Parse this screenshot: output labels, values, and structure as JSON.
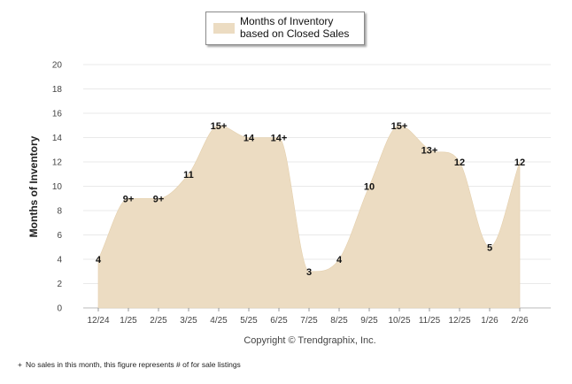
{
  "chart_data": {
    "type": "area",
    "categories": [
      "12/24",
      "1/25",
      "2/25",
      "3/25",
      "4/25",
      "5/25",
      "6/25",
      "7/25",
      "8/25",
      "9/25",
      "10/25",
      "11/25",
      "12/25",
      "1/26",
      "2/26"
    ],
    "series": [
      {
        "name": "Months of Inventory based on Closed Sales",
        "values": [
          4,
          9,
          9,
          11,
          15,
          14,
          14,
          3,
          4,
          10,
          15,
          13,
          12,
          5,
          12
        ],
        "labels": [
          "4",
          "9+",
          "9+",
          "11",
          "15+",
          "14",
          "14+",
          "3",
          "4",
          "10",
          "15+",
          "13+",
          "12",
          "5",
          "12"
        ]
      }
    ],
    "ylabel": "Months of Inventory",
    "xlabel": "",
    "ylim": [
      0,
      20
    ],
    "yticks": [
      0,
      2,
      4,
      6,
      8,
      10,
      12,
      14,
      16,
      18,
      20
    ],
    "grid": true,
    "fill_color": "#ecdcc2",
    "grid_color": "#e9e9e9",
    "legend_position": "top-center",
    "copyright": "Copyright © Trendgraphix, Inc."
  },
  "legend": {
    "label": "Months of Inventory based on Closed Sales"
  },
  "footnote": {
    "symbol": "+",
    "text": "No sales in this month, this figure represents # of for sale listings"
  }
}
